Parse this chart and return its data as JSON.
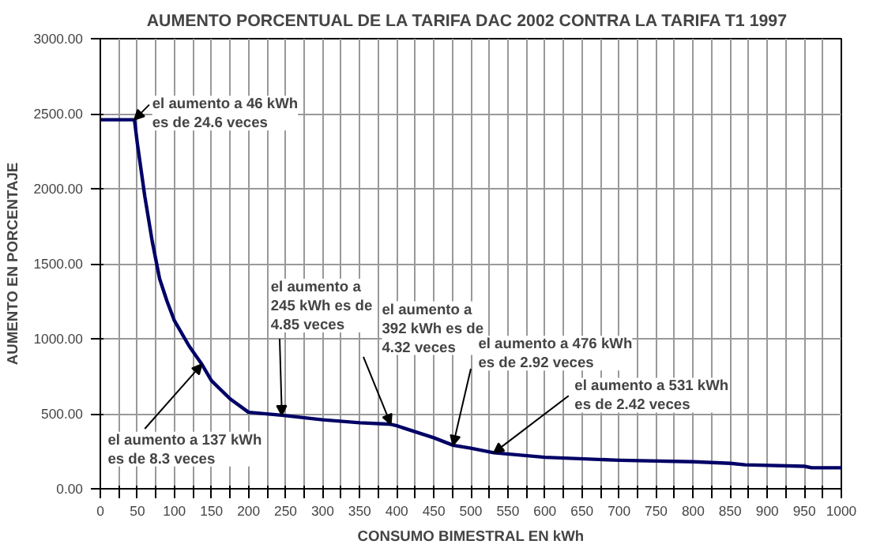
{
  "chart_data": {
    "type": "line",
    "title": "AUMENTO PORCENTUAL  DE LA TARIFA DAC 2002 CONTRA LA TARIFA T1 1997",
    "xlabel": "CONSUMO BIMESTRAL EN kWh",
    "ylabel": "AUMENTO EN PORCENTAJE",
    "x": [
      0,
      46,
      50,
      60,
      70,
      80,
      90,
      100,
      120,
      137,
      150,
      175,
      200,
      245,
      300,
      350,
      392,
      400,
      450,
      476,
      500,
      531,
      600,
      700,
      800,
      850,
      870,
      950,
      960,
      1000
    ],
    "series": [
      {
        "color": "#000066",
        "values": [
          2460,
          2460,
          2300,
          1950,
          1650,
          1400,
          1250,
          1120,
          950,
          830,
          720,
          600,
          510,
          490,
          460,
          440,
          430,
          420,
          340,
          290,
          270,
          240,
          210,
          190,
          180,
          170,
          160,
          150,
          140,
          140
        ]
      }
    ],
    "xlim": [
      0,
      1000
    ],
    "ylim": [
      0,
      3000
    ],
    "xticks": [
      0,
      {
        "value": 25,
        "label": null
      },
      50,
      {
        "value": 75,
        "label": null
      },
      100,
      {
        "value": 125,
        "label": null
      },
      150,
      {
        "value": 175,
        "label": null
      },
      200,
      {
        "value": 225,
        "label": null
      },
      250,
      {
        "value": 275,
        "label": null
      },
      300,
      {
        "value": 325,
        "label": null
      },
      350,
      {
        "value": 375,
        "label": null
      },
      400,
      {
        "value": 425,
        "label": null
      },
      450,
      {
        "value": 475,
        "label": null
      },
      500,
      {
        "value": 525,
        "label": null
      },
      550,
      {
        "value": 575,
        "label": null
      },
      600,
      {
        "value": 625,
        "label": null
      },
      650,
      {
        "value": 675,
        "label": null
      },
      700,
      {
        "value": 725,
        "label": null
      },
      750,
      {
        "value": 775,
        "label": null
      },
      800,
      {
        "value": 825,
        "label": null
      },
      850,
      {
        "value": 875,
        "label": null
      },
      900,
      {
        "value": 925,
        "label": null
      },
      950,
      {
        "value": 975,
        "label": null
      },
      1000
    ],
    "yticks": [
      {
        "value": 0,
        "label": "0.00"
      },
      {
        "value": 500,
        "label": "500.00"
      },
      {
        "value": 1000,
        "label": "1000.00"
      },
      {
        "value": 1500,
        "label": "1500.00"
      },
      {
        "value": 2000,
        "label": "2000.00"
      },
      {
        "value": 2500,
        "label": "2500.00"
      },
      {
        "value": 3000,
        "label": "3000.00"
      }
    ],
    "grid": true,
    "annotations": [
      {
        "text": "el aumento a 46 kWh\nes de 24.6 veces",
        "x": 46,
        "y": 2460
      },
      {
        "text": "el aumento a 137 kWh\nes de 8.3 veces",
        "x": 137,
        "y": 830
      },
      {
        "text": "el aumento a\n245 kWh es de\n4.85 veces",
        "x": 245,
        "y": 490
      },
      {
        "text": "el aumento a\n392 kWh es de\n4.32 veces",
        "x": 392,
        "y": 430
      },
      {
        "text": "el aumento a 476 kWh\nes de 2.92 veces",
        "x": 476,
        "y": 290
      },
      {
        "text": "el aumento a 531 kWh\nes de 2.42 veces",
        "x": 531,
        "y": 240
      }
    ]
  }
}
